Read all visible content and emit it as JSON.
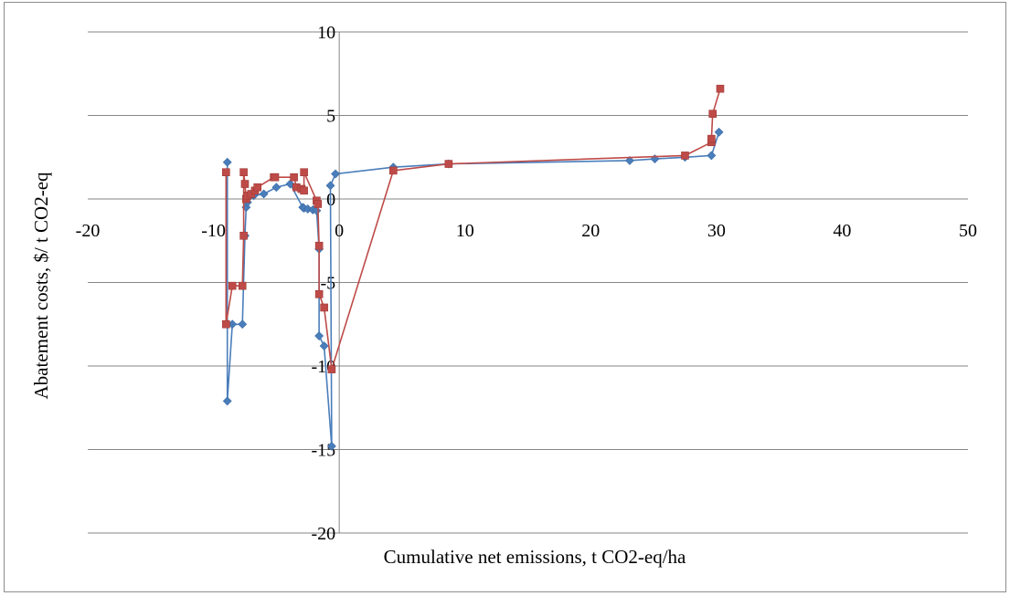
{
  "chart_data": {
    "type": "scatter",
    "title": "",
    "xlabel": "Cumulative net emissions, t CO2-eq/ha",
    "ylabel": "Abatement costs, $/ t CO2-eq",
    "xlim": [
      -20,
      50
    ],
    "ylim": [
      -20,
      10
    ],
    "x_ticks": [
      -20,
      -10,
      0,
      10,
      20,
      30,
      40,
      50
    ],
    "y_ticks": [
      -20,
      -15,
      -10,
      -5,
      0,
      5,
      10
    ],
    "x_tick_labels": [
      "-20",
      "-10",
      "0",
      "10",
      "20",
      "30",
      "40",
      "50"
    ],
    "y_tick_labels": [
      "-20",
      "-15",
      "-10",
      "-5",
      "0",
      "5",
      "10"
    ],
    "grid": "horizontal",
    "legend": "none",
    "series": [
      {
        "color": "#4a7ebb",
        "marker": "diamond",
        "points": [
          [
            -8.9,
            2.2
          ],
          [
            -8.9,
            -12.1
          ],
          [
            -8.5,
            -7.5
          ],
          [
            -7.7,
            -7.5
          ],
          [
            -7.5,
            -2.2
          ],
          [
            -7.4,
            -0.5
          ],
          [
            -7.3,
            -0.2
          ],
          [
            -7.2,
            0.1
          ],
          [
            -6.8,
            0.2
          ],
          [
            -6.0,
            0.3
          ],
          [
            -5.0,
            0.7
          ],
          [
            -3.9,
            0.9
          ],
          [
            -2.9,
            -0.5
          ],
          [
            -2.8,
            -0.55
          ],
          [
            -2.5,
            -0.6
          ],
          [
            -2.1,
            -0.65
          ],
          [
            -1.8,
            -0.7
          ],
          [
            -1.6,
            -3.0
          ],
          [
            -1.6,
            -8.2
          ],
          [
            -1.2,
            -8.8
          ],
          [
            -0.6,
            -14.8
          ],
          [
            -0.7,
            0.8
          ],
          [
            -0.3,
            1.5
          ],
          [
            4.3,
            1.9
          ],
          [
            8.7,
            2.1
          ],
          [
            23.1,
            2.3
          ],
          [
            25.1,
            2.4
          ],
          [
            27.5,
            2.5
          ],
          [
            29.6,
            2.6
          ],
          [
            30.2,
            4.0
          ]
        ]
      },
      {
        "color": "#be4b48",
        "marker": "square",
        "points": [
          [
            -9.0,
            1.6
          ],
          [
            -9.0,
            -7.5
          ],
          [
            -8.5,
            -5.2
          ],
          [
            -7.7,
            -5.2
          ],
          [
            -7.6,
            -2.2
          ],
          [
            -7.6,
            1.6
          ],
          [
            -7.5,
            0.9
          ],
          [
            -7.4,
            0.0
          ],
          [
            -7.3,
            0.2
          ],
          [
            -7.0,
            0.3
          ],
          [
            -6.7,
            0.5
          ],
          [
            -6.5,
            0.7
          ],
          [
            -5.2,
            1.3
          ],
          [
            -5.1,
            1.3
          ],
          [
            -3.6,
            1.3
          ],
          [
            -3.4,
            0.7
          ],
          [
            -3.0,
            0.6
          ],
          [
            -2.8,
            0.5
          ],
          [
            -2.8,
            1.6
          ],
          [
            -1.8,
            -0.1
          ],
          [
            -1.7,
            -0.3
          ],
          [
            -1.6,
            -2.8
          ],
          [
            -1.6,
            -5.7
          ],
          [
            -1.2,
            -6.5
          ],
          [
            -0.6,
            -10.2
          ],
          [
            4.3,
            1.7
          ],
          [
            8.7,
            2.1
          ],
          [
            27.5,
            2.6
          ],
          [
            29.6,
            3.4
          ],
          [
            29.6,
            3.6
          ],
          [
            29.7,
            5.1
          ],
          [
            30.3,
            6.6
          ]
        ]
      }
    ]
  }
}
